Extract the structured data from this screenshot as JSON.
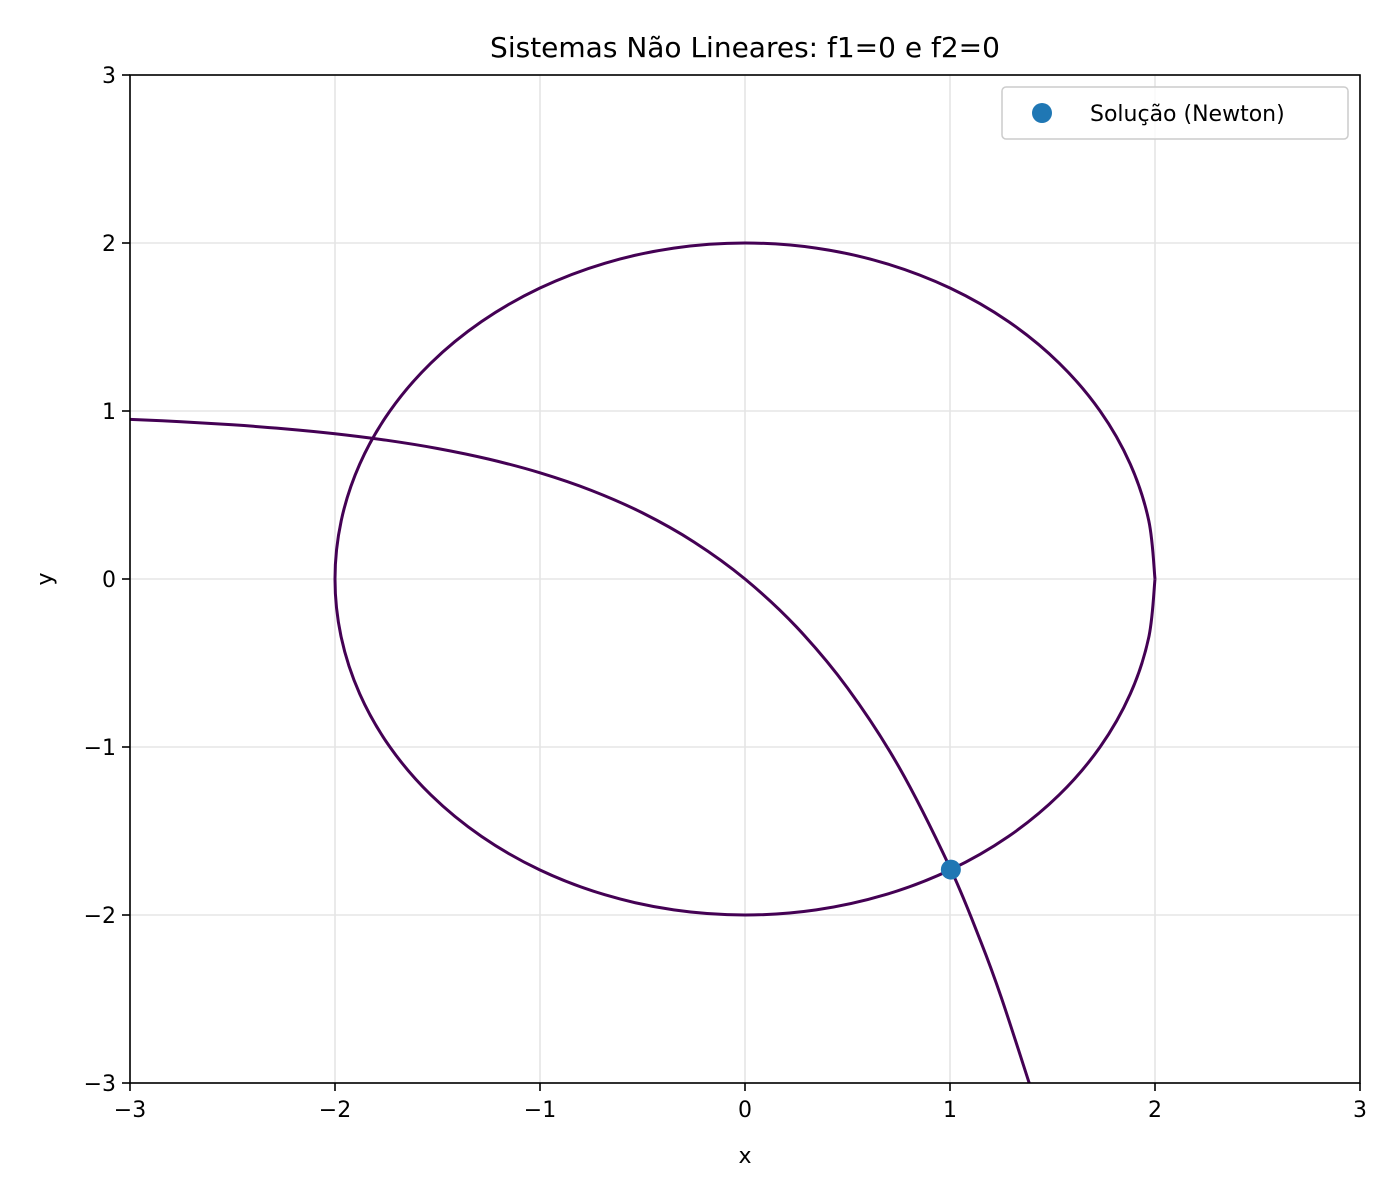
{
  "chart_data": {
    "type": "line",
    "title": "Sistemas Não Lineares: f1=0 e f2=0",
    "xlabel": "x",
    "ylabel": "y",
    "xlim": [
      -3,
      3
    ],
    "ylim": [
      -3,
      3
    ],
    "x_ticks": [
      -3,
      -2,
      -1,
      0,
      1,
      2,
      3
    ],
    "y_ticks": [
      -3,
      -2,
      -1,
      0,
      1,
      2,
      3
    ],
    "x_tick_labels": [
      "−3",
      "−2",
      "−1",
      "0",
      "1",
      "2",
      "3"
    ],
    "y_tick_labels": [
      "−3",
      "−2",
      "−1",
      "0",
      "1",
      "2",
      "3"
    ],
    "grid": true,
    "legend_position": "upper-right",
    "contour_color": "#440154",
    "point_color": "#1f77b4",
    "contours": [
      {
        "curve": "f1=0",
        "points": [
          [
            2.0,
            0.0
          ],
          [
            1.9696,
            0.3473
          ],
          [
            1.8794,
            0.684
          ],
          [
            1.7321,
            1.0
          ],
          [
            1.5321,
            1.2856
          ],
          [
            1.2856,
            1.5321
          ],
          [
            1.0,
            1.7321
          ],
          [
            0.684,
            1.8794
          ],
          [
            0.3473,
            1.9696
          ],
          [
            0.0,
            2.0
          ],
          [
            -0.3473,
            1.9696
          ],
          [
            -0.684,
            1.8794
          ],
          [
            -1.0,
            1.7321
          ],
          [
            -1.2856,
            1.5321
          ],
          [
            -1.5321,
            1.2856
          ],
          [
            -1.7321,
            1.0
          ],
          [
            -1.8794,
            0.684
          ],
          [
            -1.9696,
            0.3473
          ],
          [
            -2.0,
            0.0
          ],
          [
            -1.9696,
            -0.3473
          ],
          [
            -1.8794,
            -0.684
          ],
          [
            -1.7321,
            -1.0
          ],
          [
            -1.5321,
            -1.2856
          ],
          [
            -1.2856,
            -1.5321
          ],
          [
            -1.0,
            -1.7321
          ],
          [
            -0.684,
            -1.8794
          ],
          [
            -0.3473,
            -1.9696
          ],
          [
            0.0,
            -2.0
          ],
          [
            0.3473,
            -1.9696
          ],
          [
            0.684,
            -1.8794
          ],
          [
            1.0,
            -1.7321
          ],
          [
            1.2856,
            -1.5321
          ],
          [
            1.5321,
            -1.2856
          ],
          [
            1.7321,
            -1.0
          ],
          [
            1.8794,
            -0.684
          ],
          [
            1.9696,
            -0.3473
          ],
          [
            2.0,
            0.0
          ]
        ]
      },
      {
        "curve": "f2=0",
        "points": [
          [
            -3.0,
            0.9502
          ],
          [
            -2.75,
            0.9361
          ],
          [
            -2.5,
            0.9179
          ],
          [
            -2.25,
            0.8946
          ],
          [
            -2.0,
            0.8647
          ],
          [
            -1.75,
            0.8262
          ],
          [
            -1.5,
            0.7769
          ],
          [
            -1.25,
            0.7135
          ],
          [
            -1.0,
            0.6321
          ],
          [
            -0.75,
            0.5276
          ],
          [
            -0.5,
            0.3935
          ],
          [
            -0.25,
            0.2212
          ],
          [
            0.0,
            0.0
          ],
          [
            0.25,
            -0.284
          ],
          [
            0.5,
            -0.6487
          ],
          [
            0.75,
            -1.117
          ],
          [
            1.0,
            -1.7183
          ],
          [
            1.15,
            -2.1582
          ],
          [
            1.25,
            -2.4903
          ],
          [
            1.3863,
            -3.0
          ]
        ]
      }
    ],
    "series": [
      {
        "name": "Solução (Newton)",
        "type": "scatter",
        "x": [
          1.0042
        ],
        "y": [
          -1.7296
        ]
      }
    ]
  }
}
